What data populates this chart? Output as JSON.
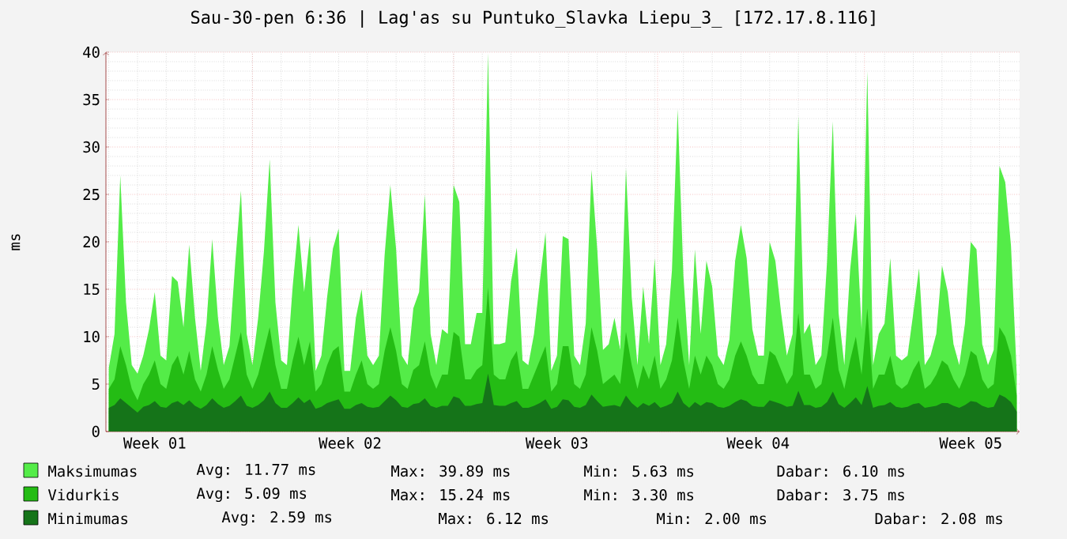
{
  "chart_data": {
    "type": "area",
    "title": "Sau-30-pen 6:36 | Lag'as su Puntuko_Slavka Liepu_3_ [172.17.8.116]",
    "ylabel": "ms",
    "ylim": [
      0,
      40
    ],
    "yticks": [
      0,
      5,
      10,
      15,
      20,
      25,
      30,
      35,
      40
    ],
    "grid": true,
    "legend": "bottom",
    "categories": [
      null,
      null,
      null,
      null,
      null,
      null,
      null,
      null,
      "Week 01",
      null,
      null,
      null,
      null,
      null,
      null,
      null,
      null,
      null,
      null,
      null,
      null,
      null,
      null,
      null,
      null,
      null,
      null,
      null,
      null,
      null,
      null,
      null,
      null,
      null,
      null,
      null,
      null,
      null,
      null,
      null,
      null,
      null,
      "Week 02",
      null,
      null,
      null,
      null,
      null,
      null,
      null,
      null,
      null,
      null,
      null,
      null,
      null,
      null,
      null,
      null,
      null,
      null,
      null,
      null,
      null,
      null,
      null,
      null,
      null,
      null,
      null,
      null,
      null,
      null,
      null,
      null,
      null,
      null,
      null,
      "Week 03",
      null,
      null,
      null,
      null,
      null,
      null,
      null,
      null,
      null,
      null,
      null,
      null,
      null,
      null,
      null,
      null,
      null,
      null,
      null,
      null,
      null,
      null,
      null,
      null,
      null,
      null,
      null,
      null,
      null,
      null,
      null,
      null,
      null,
      null,
      "Week 04",
      null,
      null,
      null,
      null,
      null,
      null,
      null,
      null,
      null,
      null,
      null,
      null,
      null,
      null,
      null,
      null,
      null,
      null,
      null,
      null,
      null,
      null,
      null,
      null,
      null,
      null,
      null,
      null,
      null,
      null,
      null,
      null,
      null,
      null,
      null,
      null,
      "Week 05",
      null,
      null,
      null,
      null,
      null,
      null,
      null,
      null
    ],
    "series": [
      {
        "name": "Maksimumas",
        "color": "#54ec48",
        "values": [
          6.7,
          10.3,
          27,
          13.6,
          7,
          6.1,
          8,
          10.8,
          14.7,
          8,
          7.5,
          16.4,
          15.8,
          11,
          19.7,
          12,
          6.4,
          11.4,
          20.3,
          12,
          7,
          9,
          17.8,
          25.4,
          10.3,
          7,
          12,
          19,
          28.7,
          13.6,
          7.5,
          7,
          15.3,
          21.8,
          14.7,
          20.6,
          6.4,
          8,
          14.2,
          19.3,
          21.4,
          6.4,
          6.4,
          12,
          15,
          8,
          7,
          8,
          18.6,
          26,
          19.2,
          8,
          7,
          13,
          14.7,
          25,
          10.3,
          7,
          10.8,
          10.3,
          26,
          24.2,
          9.2,
          9.2,
          12.5,
          12.5,
          39.9,
          9.2,
          9.2,
          9.4,
          15.8,
          19.4,
          7.5,
          7,
          10.3,
          15.8,
          21,
          6.4,
          8,
          20.6,
          20.3,
          8,
          7,
          11.4,
          27.6,
          19.2,
          8.6,
          9.2,
          12,
          8.6,
          27.8,
          14.2,
          7,
          15.3,
          9.2,
          18.3,
          7,
          9.2,
          17,
          34,
          16.4,
          7,
          19.2,
          10.3,
          18,
          15.3,
          8,
          7,
          9.7,
          18,
          21.8,
          18.3,
          10.8,
          8,
          8,
          20,
          18,
          12.5,
          8,
          10.3,
          33.3,
          10.3,
          11.4,
          7,
          8,
          18,
          32.7,
          12.5,
          7,
          17,
          23,
          10.8,
          38,
          7,
          10.3,
          11.4,
          18.3,
          8,
          7.5,
          8,
          12.5,
          17.2,
          7,
          8,
          10.3,
          17.5,
          14.7,
          9.2,
          7,
          11.4,
          20,
          19.2,
          9.2,
          7,
          8.6,
          28,
          26.3,
          19.6,
          6.1
        ]
      },
      {
        "name": "Vidurkis",
        "color": "#24bc14",
        "values": [
          4.5,
          5.5,
          9,
          7,
          4.5,
          3.3,
          5,
          6,
          7.5,
          5,
          4.5,
          7,
          8,
          6,
          8.5,
          5.5,
          4.2,
          6,
          9,
          6.5,
          4.5,
          5.5,
          8,
          10.5,
          6,
          4.5,
          6,
          8.5,
          11,
          7,
          4.5,
          4.5,
          7.5,
          10,
          7,
          9.5,
          4.2,
          5,
          7,
          8.5,
          9,
          4.2,
          4.2,
          6,
          7.5,
          5,
          4.5,
          5,
          8.5,
          11,
          8.5,
          5,
          4.5,
          6.5,
          7,
          9.5,
          6,
          4.5,
          6,
          6,
          10.5,
          10,
          5.5,
          5.5,
          6.5,
          7,
          15.2,
          6,
          5.5,
          5.5,
          7.5,
          8.5,
          4.5,
          4.5,
          6,
          7.5,
          9,
          4.2,
          5,
          9,
          9,
          5,
          4.5,
          6,
          11,
          8.5,
          5,
          5.5,
          6,
          5,
          10.5,
          7,
          4.5,
          7,
          5.5,
          8,
          4.5,
          5.5,
          7.5,
          12,
          7.5,
          4.5,
          8,
          6,
          8,
          7,
          5,
          4.5,
          5.5,
          8,
          9.5,
          8,
          6,
          5,
          5,
          8.5,
          8,
          6.5,
          5,
          6,
          12.5,
          6,
          6,
          4.5,
          5,
          8,
          12,
          6.5,
          4.5,
          7.5,
          10,
          6,
          13,
          4.5,
          6,
          6,
          8,
          5,
          4.5,
          5,
          6.5,
          7.5,
          4.5,
          5,
          6,
          7.5,
          7,
          5.5,
          4.5,
          6,
          8.5,
          8,
          5.5,
          4.5,
          5,
          11,
          10,
          8,
          3.8
        ]
      },
      {
        "name": "Minimumas",
        "color": "#157419",
        "values": [
          2.5,
          2.8,
          3.5,
          3,
          2.5,
          2.0,
          2.6,
          2.8,
          3.2,
          2.6,
          2.5,
          3,
          3.2,
          2.8,
          3.3,
          2.7,
          2.4,
          2.8,
          3.5,
          2.9,
          2.5,
          2.7,
          3.2,
          3.8,
          2.7,
          2.5,
          2.8,
          3.3,
          4.2,
          3,
          2.5,
          2.5,
          3,
          3.6,
          3,
          3.4,
          2.4,
          2.6,
          3,
          3.2,
          3.4,
          2.4,
          2.4,
          2.8,
          3,
          2.6,
          2.5,
          2.6,
          3.2,
          3.8,
          3.3,
          2.6,
          2.5,
          2.9,
          3,
          3.5,
          2.7,
          2.5,
          2.7,
          2.7,
          3.7,
          3.5,
          2.7,
          2.7,
          2.9,
          3,
          6.1,
          2.8,
          2.7,
          2.7,
          3,
          3.2,
          2.5,
          2.5,
          2.7,
          3,
          3.4,
          2.4,
          2.6,
          3.4,
          3.3,
          2.6,
          2.5,
          2.8,
          3.9,
          3.2,
          2.6,
          2.7,
          2.8,
          2.6,
          3.8,
          3,
          2.5,
          3,
          2.7,
          3.1,
          2.5,
          2.7,
          3,
          4.2,
          3,
          2.5,
          3.1,
          2.7,
          3.1,
          3,
          2.6,
          2.5,
          2.7,
          3.1,
          3.4,
          3.2,
          2.7,
          2.6,
          2.6,
          3.3,
          3.1,
          2.9,
          2.6,
          2.7,
          4.3,
          2.8,
          2.8,
          2.5,
          2.6,
          3.1,
          4.2,
          2.9,
          2.5,
          3,
          3.6,
          2.8,
          4.8,
          2.5,
          2.7,
          2.8,
          3.1,
          2.6,
          2.5,
          2.6,
          2.9,
          3,
          2.5,
          2.6,
          2.7,
          3,
          3,
          2.7,
          2.5,
          2.8,
          3.2,
          3.1,
          2.7,
          2.5,
          2.6,
          3.9,
          3.6,
          3.1,
          2.1
        ]
      }
    ],
    "annotations": [
      "Avg: 11.77 ms",
      "Max: 39.89 ms",
      "Min: 5.63 ms",
      "Dabar: 6.10 ms",
      "Avg: 5.09 ms",
      "Max: 15.24 ms",
      "Min: 3.30 ms",
      "Dabar: 3.75 ms",
      "Avg: 2.59 ms",
      "Max: 6.12 ms",
      "Min: 2.00 ms",
      "Dabar: 2.08 ms"
    ]
  }
}
